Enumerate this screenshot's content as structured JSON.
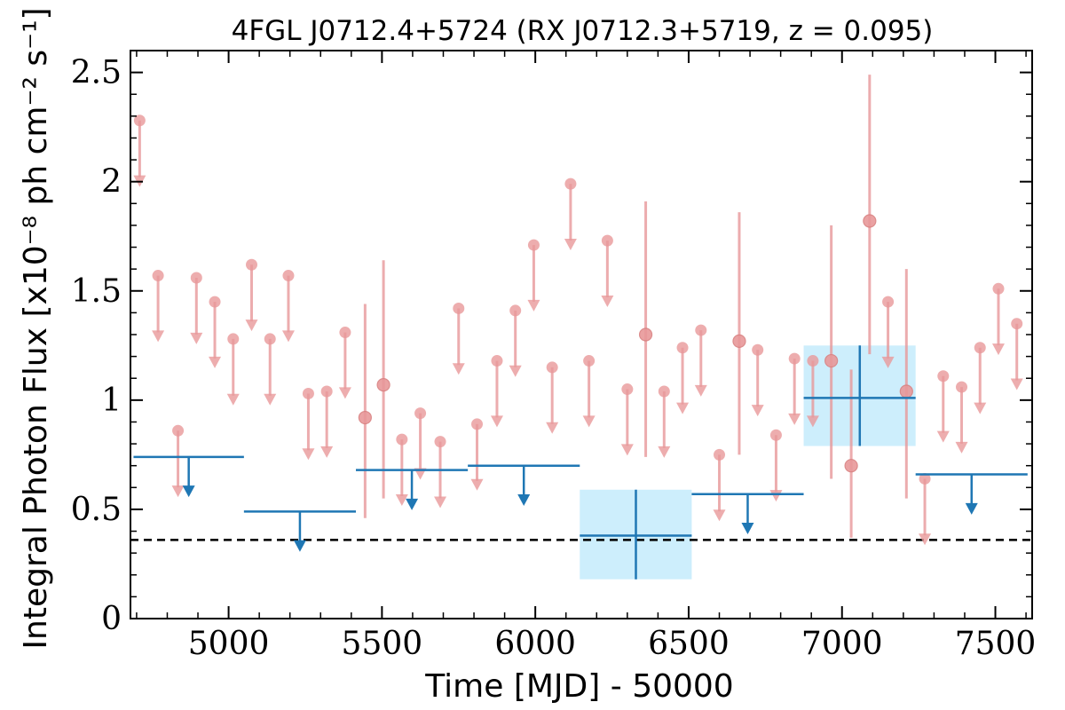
{
  "chart_data": {
    "type": "scatter",
    "title": "4FGL J0712.4+5724 (RX J0712.3+5719, z = 0.095)",
    "xlabel": "Time [MJD] - 50000",
    "ylabel": "Integral Photon Flux [x10⁻⁸ ph cm⁻² s⁻¹]",
    "xlim": [
      4680,
      7620
    ],
    "ylim": [
      0,
      2.6
    ],
    "xticks": [
      "5000",
      "5500",
      "6000",
      "6500",
      "7000",
      "7500"
    ],
    "xtick_values": [
      5000,
      5500,
      6000,
      6500,
      7000,
      7500
    ],
    "yticks": [
      "0",
      "0.5",
      "1",
      "1.5",
      "2",
      "2.5"
    ],
    "ytick_values": [
      0,
      0.5,
      1,
      1.5,
      2,
      2.5
    ],
    "grid": false,
    "reference_line": {
      "y": 0.36,
      "style": "dashed",
      "color": "#000000"
    },
    "colors": {
      "short_bins": "#e8989a",
      "long_bins": "#1f77b4",
      "detection_box": "#cdeefc"
    },
    "series": [
      {
        "upper_limits": [
          {
            "x": 4710,
            "y": 2.28
          },
          {
            "x": 4770,
            "y": 1.57
          },
          {
            "x": 4835,
            "y": 0.86
          },
          {
            "x": 4895,
            "y": 1.56
          },
          {
            "x": 4955,
            "y": 1.45
          },
          {
            "x": 5015,
            "y": 1.28
          },
          {
            "x": 5075,
            "y": 1.62
          },
          {
            "x": 5135,
            "y": 1.28
          },
          {
            "x": 5195,
            "y": 1.57
          },
          {
            "x": 5260,
            "y": 1.03
          },
          {
            "x": 5320,
            "y": 1.04
          },
          {
            "x": 5380,
            "y": 1.31
          },
          {
            "x": 5565,
            "y": 0.82
          },
          {
            "x": 5625,
            "y": 0.94
          },
          {
            "x": 5690,
            "y": 0.81
          },
          {
            "x": 5750,
            "y": 1.42
          },
          {
            "x": 5810,
            "y": 0.89
          },
          {
            "x": 5875,
            "y": 1.18
          },
          {
            "x": 5935,
            "y": 1.41
          },
          {
            "x": 5995,
            "y": 1.71
          },
          {
            "x": 6055,
            "y": 1.15
          },
          {
            "x": 6115,
            "y": 1.99
          },
          {
            "x": 6175,
            "y": 1.18
          },
          {
            "x": 6235,
            "y": 1.73
          },
          {
            "x": 6300,
            "y": 1.05
          },
          {
            "x": 6420,
            "y": 1.04
          },
          {
            "x": 6480,
            "y": 1.24
          },
          {
            "x": 6540,
            "y": 1.32
          },
          {
            "x": 6600,
            "y": 0.75
          },
          {
            "x": 6725,
            "y": 1.23
          },
          {
            "x": 6785,
            "y": 0.84
          },
          {
            "x": 6845,
            "y": 1.19
          },
          {
            "x": 6905,
            "y": 1.18
          },
          {
            "x": 7150,
            "y": 1.45
          },
          {
            "x": 7270,
            "y": 0.64
          },
          {
            "x": 7330,
            "y": 1.11
          },
          {
            "x": 7390,
            "y": 1.06
          },
          {
            "x": 7450,
            "y": 1.24
          },
          {
            "x": 7510,
            "y": 1.51
          },
          {
            "x": 7570,
            "y": 1.35
          }
        ],
        "detections": [
          {
            "x": 5445,
            "y": 0.92,
            "ylo": 0.46,
            "yhi": 1.44
          },
          {
            "x": 5505,
            "y": 1.07,
            "ylo": 0.55,
            "yhi": 1.64
          },
          {
            "x": 6360,
            "y": 1.3,
            "ylo": 0.74,
            "yhi": 1.91
          },
          {
            "x": 6665,
            "y": 1.27,
            "ylo": 0.75,
            "yhi": 1.86
          },
          {
            "x": 6965,
            "y": 1.18,
            "ylo": 0.64,
            "yhi": 1.8
          },
          {
            "x": 7030,
            "y": 0.7,
            "ylo": 0.37,
            "yhi": 1.14
          },
          {
            "x": 7090,
            "y": 1.82,
            "ylo": 1.21,
            "yhi": 2.49
          },
          {
            "x": 7210,
            "y": 1.04,
            "ylo": 0.55,
            "yhi": 1.6
          }
        ]
      },
      {
        "upper_limits": [
          {
            "x0": 4690,
            "x1": 5050,
            "y": 0.74
          },
          {
            "x0": 5050,
            "x1": 5415,
            "y": 0.49
          },
          {
            "x0": 5415,
            "x1": 5780,
            "y": 0.68
          },
          {
            "x0": 5780,
            "x1": 6145,
            "y": 0.7
          },
          {
            "x0": 6510,
            "x1": 6875,
            "y": 0.57
          },
          {
            "x0": 7240,
            "x1": 7605,
            "y": 0.66
          }
        ],
        "detections": [
          {
            "x0": 6145,
            "x1": 6510,
            "x": 6328,
            "y": 0.38,
            "ylo": 0.18,
            "yhi": 0.59
          },
          {
            "x0": 6875,
            "x1": 7240,
            "x": 7058,
            "y": 1.01,
            "ylo": 0.79,
            "yhi": 1.25
          }
        ]
      }
    ]
  }
}
